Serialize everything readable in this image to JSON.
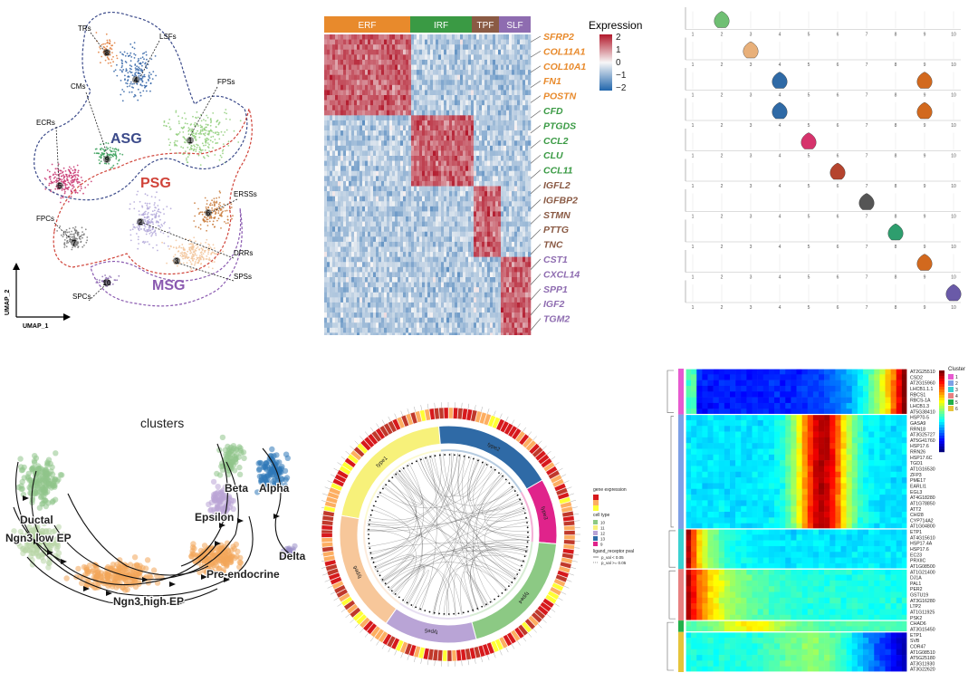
{
  "colors": {
    "background": "#ffffff",
    "erf": "#e88a2c",
    "irf": "#3a9a44",
    "tpf": "#8a5a44",
    "slf": "#8e6cb0",
    "heat_high": "#c0392b",
    "heat_low": "#2b6cb0"
  },
  "umap": {
    "axis_y": "UMAP_2",
    "axis_x": "UMAP_1",
    "cluster_labels": [
      "TRs",
      "LSFs",
      "CMs",
      "FPSs",
      "ECRs",
      "ERSSs",
      "FPCs",
      "DRRs",
      "SPSs",
      "SPCs"
    ],
    "cluster_numbers": [
      "1",
      "2",
      "3",
      "4",
      "5",
      "6",
      "7",
      "8",
      "9",
      "10"
    ],
    "group_labels": {
      "asg": "ASG",
      "psg": "PSG",
      "msg": "MSG"
    }
  },
  "chart_data": [
    {
      "type": "heatmap",
      "column_groups": [
        "ERF",
        "IRF",
        "TPF",
        "SLF"
      ],
      "legend_title": "Expression",
      "legend_ticks": [
        "2",
        "1",
        "0",
        "−1",
        "−2"
      ],
      "genes": [
        {
          "name": "SFRP2",
          "group": "ERF"
        },
        {
          "name": "COL11A1",
          "group": "ERF"
        },
        {
          "name": "COL10A1",
          "group": "ERF"
        },
        {
          "name": "FN1",
          "group": "ERF"
        },
        {
          "name": "POSTN",
          "group": "ERF"
        },
        {
          "name": "CFD",
          "group": "IRF"
        },
        {
          "name": "PTGDS",
          "group": "IRF"
        },
        {
          "name": "CCL2",
          "group": "IRF"
        },
        {
          "name": "CLU",
          "group": "IRF"
        },
        {
          "name": "CCL11",
          "group": "IRF"
        },
        {
          "name": "IGFL2",
          "group": "TPF"
        },
        {
          "name": "IGFBP2",
          "group": "TPF"
        },
        {
          "name": "STMN",
          "group": "TPF"
        },
        {
          "name": "PTTG",
          "group": "TPF"
        },
        {
          "name": "TNC",
          "group": "TPF"
        },
        {
          "name": "CST1",
          "group": "SLF"
        },
        {
          "name": "CXCL14",
          "group": "SLF"
        },
        {
          "name": "SPP1",
          "group": "SLF"
        },
        {
          "name": "IGF2",
          "group": "SLF"
        },
        {
          "name": "TGM2",
          "group": "SLF"
        }
      ]
    },
    {
      "type": "violin",
      "x_ticks": [
        "1",
        "2",
        "3",
        "4",
        "5",
        "6",
        "7",
        "8",
        "9",
        "10"
      ],
      "panels": [
        {
          "peaks": [
            {
              "cluster": 2,
              "color": "#6fbf73"
            }
          ]
        },
        {
          "peaks": [
            {
              "cluster": 3,
              "color": "#e8b07a"
            }
          ]
        },
        {
          "peaks": [
            {
              "cluster": 4,
              "color": "#2f6aa6"
            },
            {
              "cluster": 9,
              "color": "#d2691e"
            }
          ]
        },
        {
          "peaks": [
            {
              "cluster": 4,
              "color": "#2f6aa6"
            },
            {
              "cluster": 9,
              "color": "#d2691e"
            }
          ]
        },
        {
          "peaks": [
            {
              "cluster": 5,
              "color": "#d6336c"
            }
          ]
        },
        {
          "peaks": [
            {
              "cluster": 6,
              "color": "#b5442e"
            }
          ]
        },
        {
          "peaks": [
            {
              "cluster": 7,
              "color": "#555555"
            }
          ]
        },
        {
          "peaks": [
            {
              "cluster": 8,
              "color": "#2e9e6e"
            }
          ]
        },
        {
          "peaks": [
            {
              "cluster": 9,
              "color": "#d2691e"
            }
          ]
        },
        {
          "peaks": [
            {
              "cluster": 10,
              "color": "#6a5aa8"
            }
          ]
        }
      ]
    },
    {
      "type": "scatter",
      "title": "clusters",
      "labels": [
        "Ductal",
        "Ngn3 low EP",
        "Ngn3 high EP",
        "Pre-endocrine",
        "Epsilon",
        "Beta",
        "Alpha",
        "Delta"
      ]
    },
    {
      "type": "chord",
      "sectors": [
        "type1",
        "type2",
        "type3",
        "type4",
        "type5",
        "type6"
      ],
      "legend": {
        "gene_expression_title": "gene expression",
        "cell_type_title": "cell type",
        "cell_types": [
          "10",
          "11",
          "12",
          "13",
          "9"
        ],
        "pval_title": "ligand_receptor pval",
        "pval_items": [
          "p_val < 0.05",
          "p_val >= 0.05"
        ]
      }
    },
    {
      "type": "heatmap",
      "legend_title": "Cluster",
      "cluster_ids": [
        "1",
        "2",
        "3",
        "4",
        "5",
        "6"
      ],
      "genes": [
        "AT2G25510",
        "CSD2",
        "AT2G15960",
        "LHCB1.1.1",
        "RBCS1",
        "RBCS-1A",
        "LHCB1.3",
        "AT5G38410",
        "HSP70-5",
        "GASA9",
        "RRN18",
        "AT3G25727",
        "AT5G41760",
        "HSP17.6",
        "RRN26",
        "HSP17.6C",
        "TGD1",
        "AT1G16530",
        "ZFP3",
        "PME17",
        "EARLI1",
        "EGL3",
        "AT4G18280",
        "AT1G78850",
        "ATT2",
        "CHI28",
        "CYP714A2",
        "AT1G04800",
        "ETP1",
        "AT4G15610",
        "HSP17.4A",
        "HSP17.6",
        "EC23",
        "PRXIIC",
        "AT1G08500",
        "AT1G21400",
        "DJ1A",
        "PAL1",
        "PER2",
        "GSTU19",
        "AT3G16280",
        "LTP2",
        "AT1G11925",
        "PSK2",
        "CHAD6",
        "AT3G15450",
        "ETP1",
        "SVB",
        "COR47",
        "AT1G08510",
        "AT5G25180",
        "AT3G11930",
        "AT3G22620"
      ]
    }
  ]
}
